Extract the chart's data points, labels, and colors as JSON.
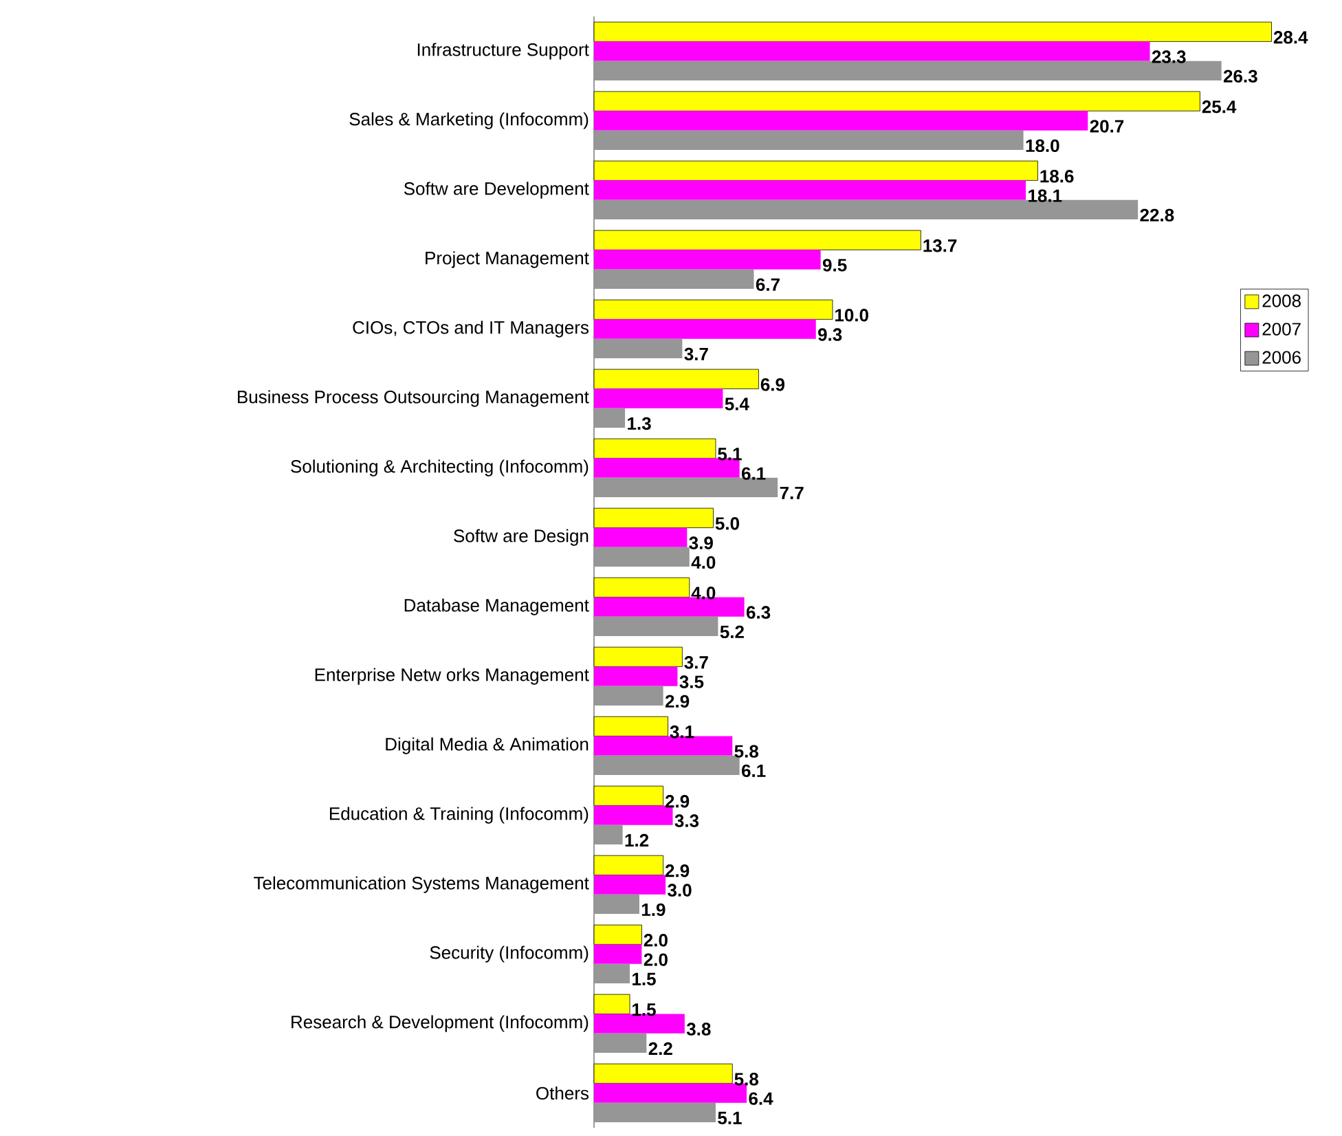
{
  "chart_data": {
    "type": "bar",
    "orientation": "horizontal",
    "legend": "right",
    "data_labels": true,
    "categories": [
      "Infrastructure Support",
      "Sales & Marketing (Infocomm)",
      "Softw are Development",
      "Project Management",
      "CIOs, CTOs and IT Managers",
      "Business Process Outsourcing Management",
      "Solutioning & Architecting (Infocomm)",
      "Softw are Design",
      "Database Management",
      "Enterprise Netw orks Management",
      "Digital Media & Animation",
      "Education & Training (Infocomm)",
      "Telecommunication Systems Management",
      "Security (Infocomm)",
      "Research & Development (Infocomm)",
      "Others"
    ],
    "series": [
      {
        "name": "2008",
        "color": "#ffff00",
        "values": [
          28.4,
          25.4,
          18.6,
          13.7,
          10.0,
          6.9,
          5.1,
          5.0,
          4.0,
          3.7,
          3.1,
          2.9,
          2.9,
          2.0,
          1.5,
          5.8
        ],
        "value_labels": [
          "28.4",
          "25.4",
          "18.6",
          "13.7",
          "10.0",
          "6.9",
          "5.1",
          "5.0",
          "4.0",
          "3.7",
          "3.1",
          "2.9",
          "2.9",
          "2.0",
          "1.5",
          "5.8"
        ]
      },
      {
        "name": "2007",
        "color": "#ff00ff",
        "values": [
          23.3,
          20.7,
          18.1,
          9.5,
          9.3,
          5.4,
          6.1,
          3.9,
          6.3,
          3.5,
          5.8,
          3.3,
          3.0,
          2.0,
          3.8,
          6.4
        ],
        "value_labels": [
          "23.3",
          "20.7",
          "18.1",
          "9.5",
          "9.3",
          "5.4",
          "6.1",
          "3.9",
          "6.3",
          "3.5",
          "5.8",
          "3.3",
          "3.0",
          "2.0",
          "3.8",
          "6.4"
        ]
      },
      {
        "name": "2006",
        "color": "#969696",
        "values": [
          26.3,
          18.0,
          22.8,
          6.7,
          3.7,
          1.3,
          7.7,
          4.0,
          5.2,
          2.9,
          6.1,
          1.2,
          1.9,
          1.5,
          2.2,
          5.1
        ],
        "value_labels": [
          "26.3",
          "18.0",
          "22.8",
          "6.7",
          "3.7",
          "1.3",
          "7.7",
          "4.0",
          "5.2",
          "2.9",
          "6.1",
          "1.2",
          "1.9",
          "1.5",
          "2.2",
          "5.1"
        ]
      }
    ]
  }
}
